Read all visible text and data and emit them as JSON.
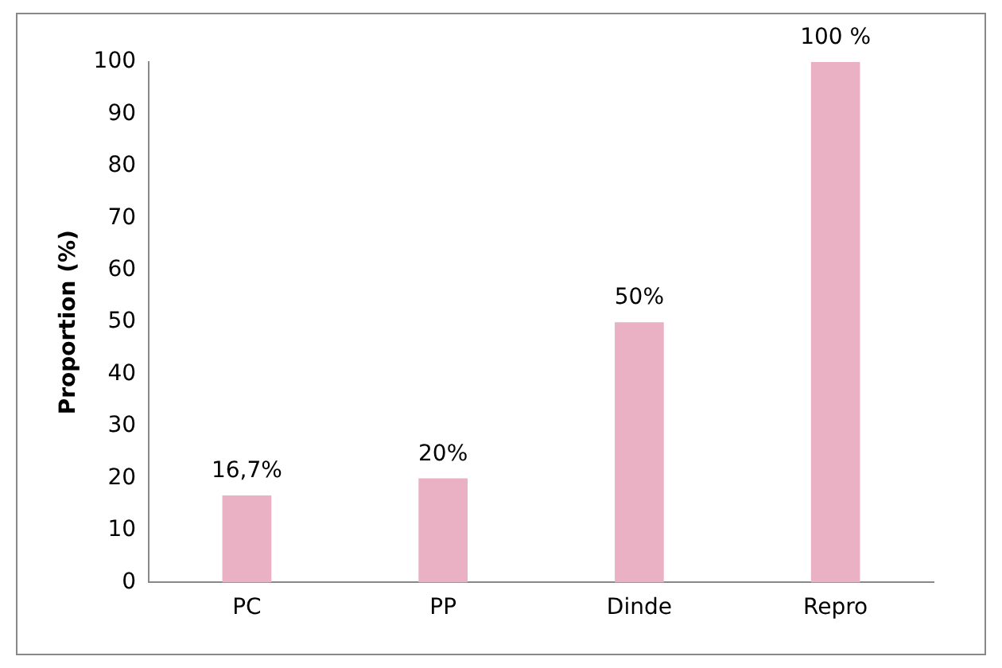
{
  "chart_data": {
    "type": "bar",
    "ylabel": "Proportion (%)",
    "categories": [
      "PC",
      "PP",
      "Dinde",
      "Repro"
    ],
    "values": [
      16.7,
      20,
      50,
      100
    ],
    "value_labels": [
      "16,7%",
      "20%",
      "50%",
      "100 %"
    ],
    "color": "#eab0c4",
    "ylim": [
      0,
      100
    ],
    "yticks": [
      0,
      10,
      20,
      30,
      40,
      50,
      60,
      70,
      80,
      90,
      100
    ],
    "grid": false,
    "legend": false
  }
}
